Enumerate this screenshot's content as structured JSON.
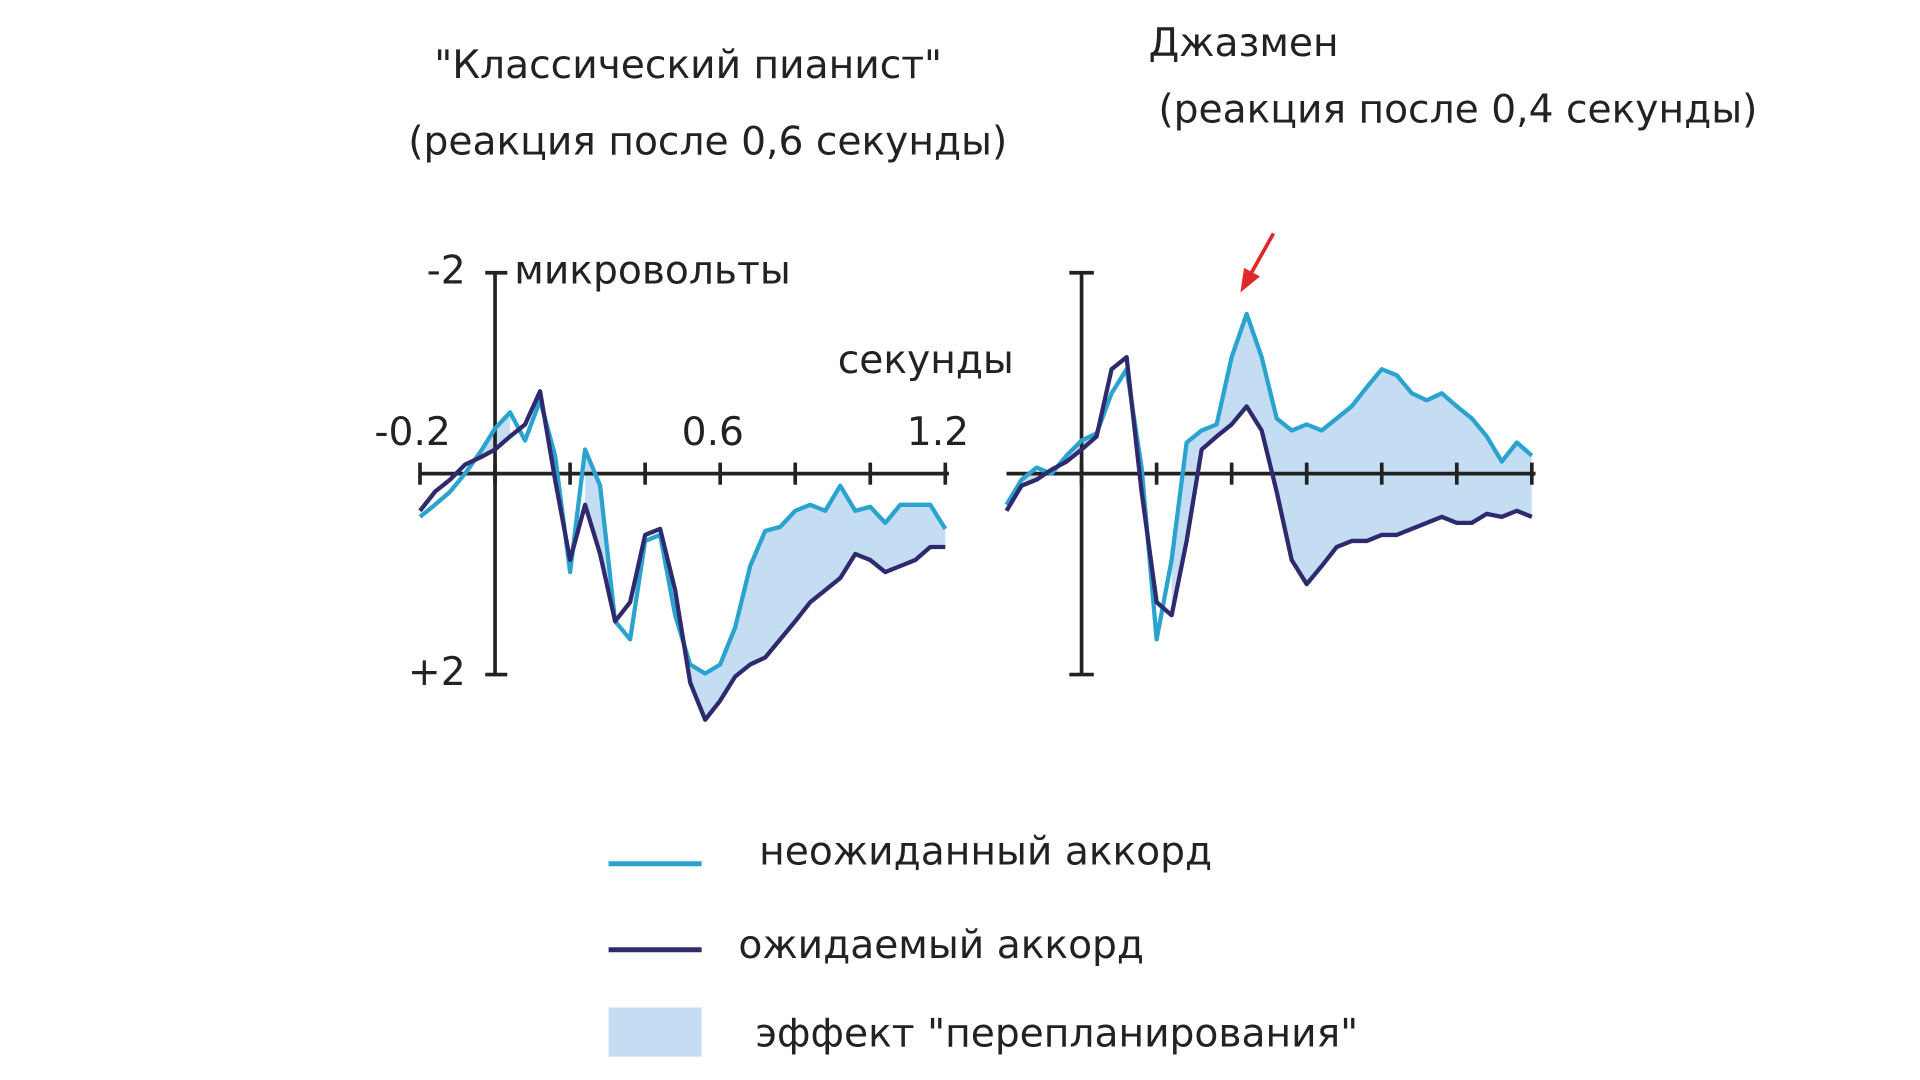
{
  "chart_data": [
    {
      "type": "line",
      "title": "\"Классический пианист\"",
      "subtitle": "(реакция после 0,6 секунды)",
      "y_label": "микровольты",
      "x_label": "секунды",
      "x": [
        -0.2,
        -0.16,
        -0.12,
        -0.08,
        -0.04,
        0,
        0.04,
        0.08,
        0.12,
        0.16,
        0.2,
        0.24,
        0.28,
        0.32,
        0.36,
        0.4,
        0.44,
        0.48,
        0.52,
        0.56,
        0.6,
        0.64,
        0.68,
        0.72,
        0.76,
        0.8,
        0.84,
        0.88,
        0.92,
        0.96,
        1,
        1.04,
        1.08,
        1.12,
        1.16,
        1.2
      ],
      "series": [
        {
          "name": "неожиданный аккорд",
          "color": "#2aa3cf",
          "values": [
            0.43,
            0.31,
            0.18,
            0,
            -0.21,
            -0.45,
            -0.61,
            -0.33,
            -0.73,
            -0.18,
            0.98,
            -0.24,
            0.12,
            1.47,
            1.65,
            0.67,
            0.61,
            1.41,
            1.9,
            1.99,
            1.9,
            1.53,
            0.92,
            0.57,
            0.53,
            0.37,
            0.31,
            0.37,
            0.12,
            0.37,
            0.33,
            0.49,
            0.31,
            0.31,
            0.31,
            0.55
          ]
        },
        {
          "name": "ожидаемый аккорд",
          "color": "#2e2a6e",
          "values": [
            0.37,
            0.18,
            0.06,
            -0.09,
            -0.16,
            -0.24,
            -0.37,
            -0.49,
            -0.82,
            0.06,
            0.86,
            0.31,
            0.8,
            1.47,
            1.28,
            0.61,
            0.55,
            1.16,
            2.08,
            2.45,
            2.26,
            2.02,
            1.9,
            1.83,
            1.65,
            1.47,
            1.28,
            1.16,
            1.04,
            0.8,
            0.86,
            0.98,
            0.92,
            0.86,
            0.73,
            0.73
          ]
        }
      ],
      "fill_label": "эффект \"перепланирования\"",
      "fill_color": "#c5ddf2",
      "xlim": [
        -0.2,
        1.2
      ],
      "ylim": [
        -2,
        2
      ],
      "xticks": [
        -0.2,
        0.6,
        1.2
      ],
      "minor_xticks": [
        0,
        0.2,
        0.4,
        0.8,
        1
      ],
      "yticks": [
        -2,
        {
          "value": 2,
          "label": "+2"
        }
      ],
      "y_inverted": true
    },
    {
      "type": "line",
      "title": "Джазмен",
      "subtitle": "(реакция после 0,4 секунды)",
      "x": [
        -0.2,
        -0.16,
        -0.12,
        -0.08,
        -0.04,
        0,
        0.04,
        0.08,
        0.12,
        0.16,
        0.2,
        0.24,
        0.28,
        0.32,
        0.36,
        0.4,
        0.44,
        0.48,
        0.52,
        0.56,
        0.6,
        0.64,
        0.68,
        0.72,
        0.76,
        0.8,
        0.84,
        0.88,
        0.92,
        0.96,
        1,
        1.04,
        1.08,
        1.12,
        1.16,
        1.2
      ],
      "series": [
        {
          "color": "#2aa3cf",
          "values": [
            0.31,
            0.06,
            -0.06,
            0,
            -0.18,
            -0.33,
            -0.4,
            -0.8,
            -1.04,
            -0.06,
            1.65,
            0.86,
            -0.31,
            -0.43,
            -0.49,
            -1.16,
            -1.59,
            -1.16,
            -0.55,
            -0.43,
            -0.49,
            -0.43,
            -0.55,
            -0.67,
            -0.86,
            -1.04,
            -0.98,
            -0.8,
            -0.73,
            -0.8,
            -0.67,
            -0.55,
            -0.37,
            -0.12,
            -0.31,
            -0.18
          ]
        },
        {
          "color": "#2e2a6e",
          "values": [
            0.37,
            0.12,
            0.06,
            -0.04,
            -0.12,
            -0.24,
            -0.37,
            -1.04,
            -1.16,
            0.18,
            1.28,
            1.41,
            0.67,
            -0.24,
            -0.37,
            -0.49,
            -0.67,
            -0.43,
            0.18,
            0.86,
            1.1,
            0.92,
            0.73,
            0.67,
            0.67,
            0.61,
            0.61,
            0.55,
            0.49,
            0.43,
            0.49,
            0.49,
            0.4,
            0.43,
            0.37,
            0.43
          ]
        }
      ],
      "fill_color": "#c5ddf2",
      "xlim": [
        -0.2,
        1.2
      ],
      "ylim": [
        -2,
        2
      ],
      "minor_xticks": [
        0,
        0.2,
        0.4,
        0.6,
        0.8,
        1,
        1.2
      ],
      "minor_yticks": [
        -2,
        2
      ],
      "y_inverted": true
    }
  ]
}
